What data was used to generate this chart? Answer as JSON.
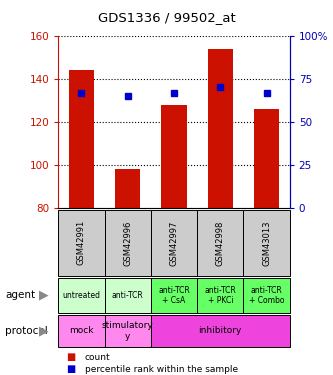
{
  "title": "GDS1336 / 99502_at",
  "samples": [
    "GSM42991",
    "GSM42996",
    "GSM42997",
    "GSM42998",
    "GSM43013"
  ],
  "counts": [
    144,
    98,
    128,
    154,
    126
  ],
  "percentile_ranks": [
    67,
    65,
    67,
    70,
    67
  ],
  "ymin": 80,
  "ymax": 160,
  "yticks_left": [
    80,
    100,
    120,
    140,
    160
  ],
  "yticks_right": [
    0,
    25,
    50,
    75,
    100
  ],
  "bar_color": "#cc1100",
  "marker_color": "#0000cc",
  "agent_labels": [
    "untreated",
    "anti-TCR",
    "anti-TCR\n+ CsA",
    "anti-TCR\n+ PKCi",
    "anti-TCR\n+ Combo"
  ],
  "agent_bg_light": "#ccffcc",
  "agent_bg_dark": "#66ff66",
  "agent_dark_cols": [
    2,
    3,
    4
  ],
  "protocol_mock_bg": "#ff88ee",
  "protocol_stim_bg": "#ff88ee",
  "protocol_inhib_bg": "#ee44dd",
  "sample_bg": "#cccccc",
  "legend_count_color": "#cc1100",
  "legend_pct_color": "#0000cc",
  "axis_left_color": "#cc1100",
  "axis_right_color": "#0000bb"
}
